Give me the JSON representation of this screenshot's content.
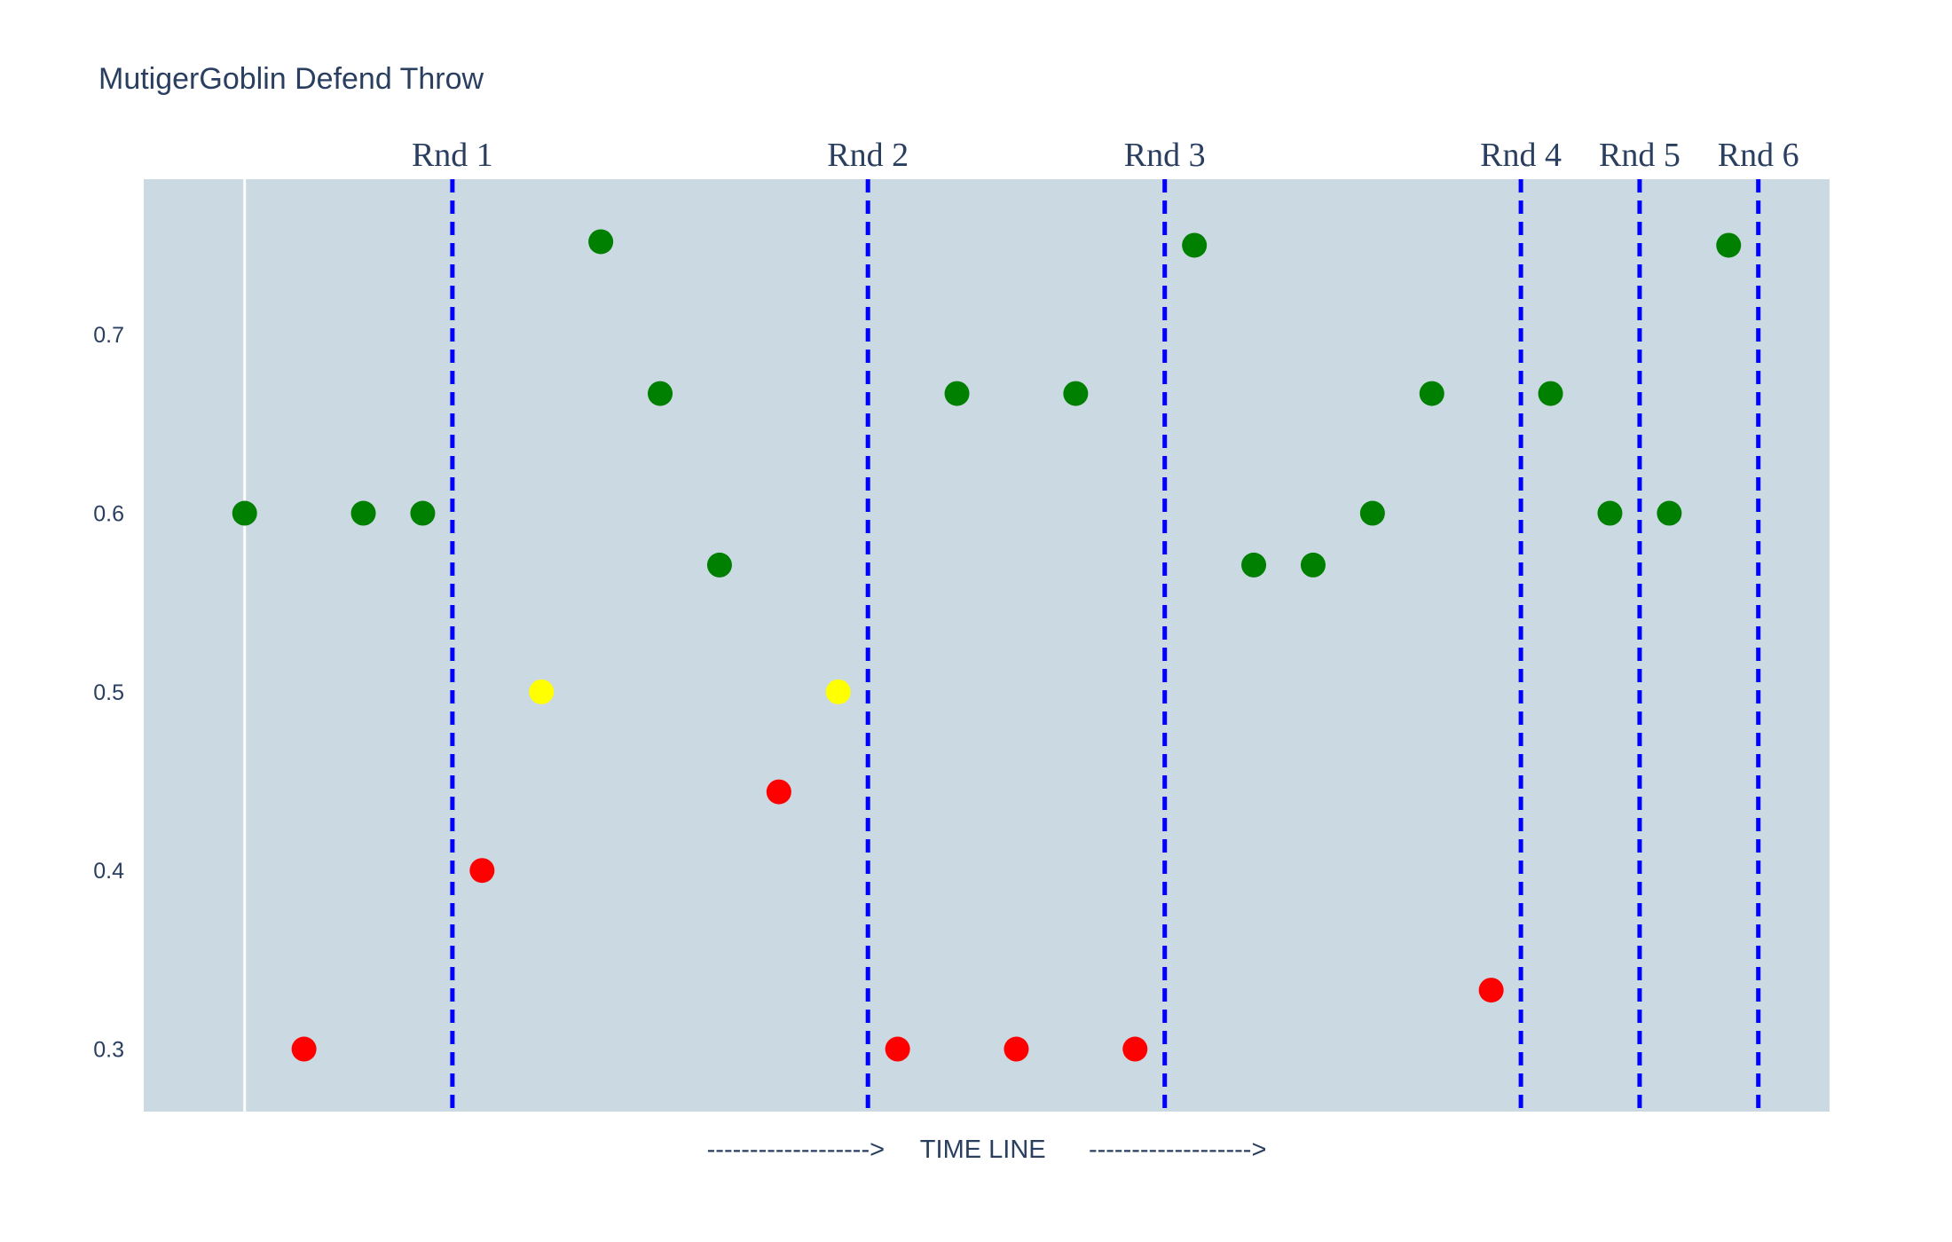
{
  "chart_data": {
    "type": "scatter",
    "title": "MutigerGoblin Defend Throw",
    "xlabel": "------------------->     TIME LINE      ------------------->",
    "ylabel": "",
    "ylim": [
      0.265,
      0.787
    ],
    "xlim": [
      -1.7,
      26.7
    ],
    "yticks": [
      0.3,
      0.4,
      0.5,
      0.6,
      0.7
    ],
    "grid": false,
    "legend": "none",
    "plot_background": "#cbd9e2",
    "colors": {
      "green": "#008000",
      "red": "#ff0000",
      "yellow": "#ffff00",
      "round_line": "#0000ff",
      "zero_line": "#ffffff"
    },
    "points": [
      {
        "x": 0,
        "y": 0.6,
        "color": "green"
      },
      {
        "x": 1,
        "y": 0.3,
        "color": "red"
      },
      {
        "x": 2,
        "y": 0.6,
        "color": "green"
      },
      {
        "x": 3,
        "y": 0.6,
        "color": "green"
      },
      {
        "x": 4,
        "y": 0.4,
        "color": "red"
      },
      {
        "x": 5,
        "y": 0.5,
        "color": "yellow"
      },
      {
        "x": 6,
        "y": 0.752,
        "color": "green"
      },
      {
        "x": 7,
        "y": 0.667,
        "color": "green"
      },
      {
        "x": 8,
        "y": 0.571,
        "color": "green"
      },
      {
        "x": 9,
        "y": 0.444,
        "color": "red"
      },
      {
        "x": 10,
        "y": 0.5,
        "color": "yellow"
      },
      {
        "x": 11,
        "y": 0.3,
        "color": "red"
      },
      {
        "x": 12,
        "y": 0.667,
        "color": "green"
      },
      {
        "x": 13,
        "y": 0.3,
        "color": "red"
      },
      {
        "x": 14,
        "y": 0.667,
        "color": "green"
      },
      {
        "x": 15,
        "y": 0.3,
        "color": "red"
      },
      {
        "x": 16,
        "y": 0.75,
        "color": "green"
      },
      {
        "x": 17,
        "y": 0.571,
        "color": "green"
      },
      {
        "x": 18,
        "y": 0.571,
        "color": "green"
      },
      {
        "x": 19,
        "y": 0.6,
        "color": "green"
      },
      {
        "x": 20,
        "y": 0.667,
        "color": "green"
      },
      {
        "x": 21,
        "y": 0.333,
        "color": "red"
      },
      {
        "x": 22,
        "y": 0.667,
        "color": "green"
      },
      {
        "x": 23,
        "y": 0.6,
        "color": "green"
      },
      {
        "x": 24,
        "y": 0.6,
        "color": "green"
      },
      {
        "x": 25,
        "y": 0.75,
        "color": "green"
      }
    ],
    "rounds": [
      {
        "label": "Rnd 1",
        "x": 3.5
      },
      {
        "label": "Rnd 2",
        "x": 10.5
      },
      {
        "label": "Rnd 3",
        "x": 15.5
      },
      {
        "label": "Rnd 4",
        "x": 21.5
      },
      {
        "label": "Rnd 5",
        "x": 23.5
      },
      {
        "label": "Rnd 6",
        "x": 25.5
      }
    ]
  }
}
